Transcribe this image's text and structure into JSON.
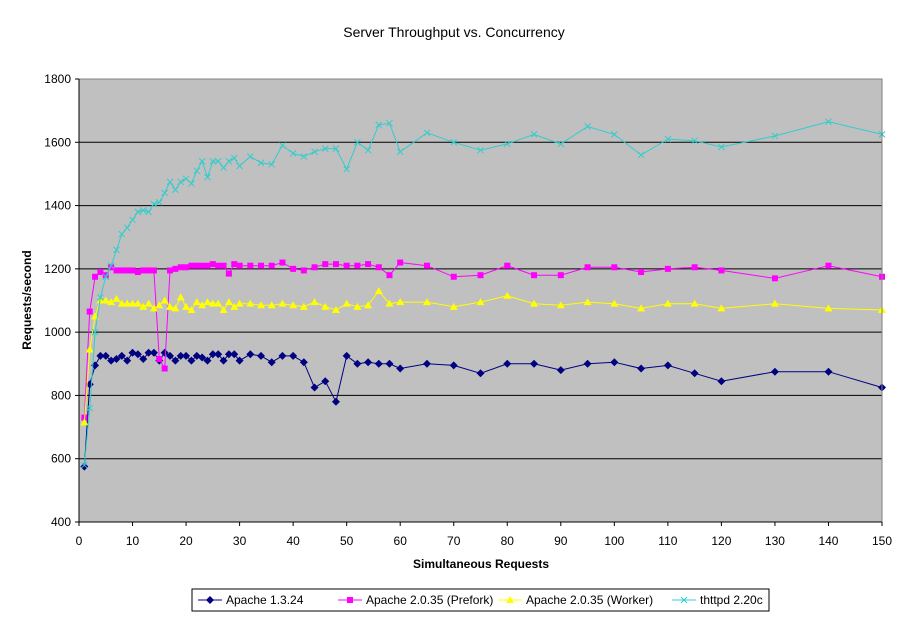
{
  "chart_data": {
    "type": "line",
    "title": "Server Throughput vs. Concurrency",
    "xlabel": "Simultaneous Requests",
    "ylabel": "Requests/second",
    "xlim": [
      0,
      150
    ],
    "ylim": [
      400,
      1800
    ],
    "x_ticks": [
      0,
      10,
      20,
      30,
      40,
      50,
      60,
      70,
      80,
      90,
      100,
      110,
      120,
      130,
      140,
      150
    ],
    "y_ticks": [
      400,
      600,
      800,
      1000,
      1200,
      1400,
      1600,
      1800
    ],
    "grid": true,
    "legend_position": "bottom",
    "colors": {
      "plot_background": "#c0c0c0",
      "gridline": "#000000"
    },
    "series": [
      {
        "name": "Apache 1.3.24",
        "color": "#000080",
        "marker": "diamond",
        "points": [
          [
            1,
            575
          ],
          [
            2,
            835
          ],
          [
            3,
            895
          ],
          [
            4,
            925
          ],
          [
            5,
            925
          ],
          [
            6,
            910
          ],
          [
            7,
            915
          ],
          [
            8,
            925
          ],
          [
            9,
            910
          ],
          [
            10,
            935
          ],
          [
            11,
            930
          ],
          [
            12,
            915
          ],
          [
            13,
            935
          ],
          [
            14,
            935
          ],
          [
            15,
            910
          ],
          [
            16,
            935
          ],
          [
            17,
            925
          ],
          [
            18,
            910
          ],
          [
            19,
            925
          ],
          [
            20,
            925
          ],
          [
            21,
            910
          ],
          [
            22,
            925
          ],
          [
            23,
            920
          ],
          [
            24,
            910
          ],
          [
            25,
            930
          ],
          [
            26,
            930
          ],
          [
            27,
            910
          ],
          [
            28,
            930
          ],
          [
            29,
            930
          ],
          [
            30,
            910
          ],
          [
            32,
            930
          ],
          [
            34,
            925
          ],
          [
            36,
            905
          ],
          [
            38,
            925
          ],
          [
            40,
            925
          ],
          [
            42,
            905
          ],
          [
            44,
            825
          ],
          [
            46,
            845
          ],
          [
            48,
            780
          ],
          [
            50,
            925
          ],
          [
            52,
            900
          ],
          [
            54,
            905
          ],
          [
            56,
            900
          ],
          [
            58,
            900
          ],
          [
            60,
            885
          ],
          [
            65,
            900
          ],
          [
            70,
            895
          ],
          [
            75,
            870
          ],
          [
            80,
            900
          ],
          [
            85,
            900
          ],
          [
            90,
            880
          ],
          [
            95,
            900
          ],
          [
            100,
            905
          ],
          [
            105,
            885
          ],
          [
            110,
            895
          ],
          [
            115,
            870
          ],
          [
            120,
            845
          ],
          [
            130,
            875
          ],
          [
            140,
            875
          ],
          [
            150,
            825
          ]
        ]
      },
      {
        "name": "Apache 2.0.35 (Prefork)",
        "color": "#ff00ff",
        "marker": "square",
        "points": [
          [
            1,
            730
          ],
          [
            2,
            1065
          ],
          [
            3,
            1175
          ],
          [
            4,
            1190
          ],
          [
            5,
            1180
          ],
          [
            6,
            1205
          ],
          [
            7,
            1195
          ],
          [
            8,
            1195
          ],
          [
            9,
            1195
          ],
          [
            10,
            1195
          ],
          [
            11,
            1190
          ],
          [
            12,
            1195
          ],
          [
            13,
            1195
          ],
          [
            14,
            1195
          ],
          [
            15,
            915
          ],
          [
            16,
            885
          ],
          [
            17,
            1195
          ],
          [
            18,
            1200
          ],
          [
            19,
            1205
          ],
          [
            20,
            1205
          ],
          [
            21,
            1210
          ],
          [
            22,
            1210
          ],
          [
            23,
            1210
          ],
          [
            24,
            1210
          ],
          [
            25,
            1215
          ],
          [
            26,
            1210
          ],
          [
            27,
            1210
          ],
          [
            28,
            1185
          ],
          [
            29,
            1215
          ],
          [
            30,
            1210
          ],
          [
            32,
            1210
          ],
          [
            34,
            1210
          ],
          [
            36,
            1210
          ],
          [
            38,
            1220
          ],
          [
            40,
            1200
          ],
          [
            42,
            1195
          ],
          [
            44,
            1205
          ],
          [
            46,
            1215
          ],
          [
            48,
            1215
          ],
          [
            50,
            1210
          ],
          [
            52,
            1210
          ],
          [
            54,
            1215
          ],
          [
            56,
            1205
          ],
          [
            58,
            1180
          ],
          [
            60,
            1220
          ],
          [
            65,
            1210
          ],
          [
            70,
            1175
          ],
          [
            75,
            1180
          ],
          [
            80,
            1210
          ],
          [
            85,
            1180
          ],
          [
            90,
            1180
          ],
          [
            95,
            1205
          ],
          [
            100,
            1205
          ],
          [
            105,
            1190
          ],
          [
            110,
            1200
          ],
          [
            115,
            1205
          ],
          [
            120,
            1195
          ],
          [
            130,
            1170
          ],
          [
            140,
            1210
          ],
          [
            150,
            1175
          ]
        ]
      },
      {
        "name": "Apache 2.0.35 (Worker)",
        "color": "#ffff00",
        "marker": "triangle",
        "points": [
          [
            1,
            715
          ],
          [
            2,
            945
          ],
          [
            3,
            1050
          ],
          [
            4,
            1100
          ],
          [
            5,
            1100
          ],
          [
            6,
            1095
          ],
          [
            7,
            1105
          ],
          [
            8,
            1090
          ],
          [
            9,
            1090
          ],
          [
            10,
            1090
          ],
          [
            11,
            1090
          ],
          [
            12,
            1080
          ],
          [
            13,
            1090
          ],
          [
            14,
            1075
          ],
          [
            15,
            1085
          ],
          [
            16,
            1100
          ],
          [
            17,
            1080
          ],
          [
            18,
            1075
          ],
          [
            19,
            1110
          ],
          [
            20,
            1080
          ],
          [
            21,
            1070
          ],
          [
            22,
            1095
          ],
          [
            23,
            1085
          ],
          [
            24,
            1095
          ],
          [
            25,
            1090
          ],
          [
            26,
            1090
          ],
          [
            27,
            1070
          ],
          [
            28,
            1095
          ],
          [
            29,
            1080
          ],
          [
            30,
            1090
          ],
          [
            32,
            1090
          ],
          [
            34,
            1085
          ],
          [
            36,
            1085
          ],
          [
            38,
            1090
          ],
          [
            40,
            1085
          ],
          [
            42,
            1080
          ],
          [
            44,
            1095
          ],
          [
            46,
            1080
          ],
          [
            48,
            1070
          ],
          [
            50,
            1090
          ],
          [
            52,
            1080
          ],
          [
            54,
            1085
          ],
          [
            56,
            1130
          ],
          [
            58,
            1090
          ],
          [
            60,
            1095
          ],
          [
            65,
            1095
          ],
          [
            70,
            1080
          ],
          [
            75,
            1095
          ],
          [
            80,
            1115
          ],
          [
            85,
            1090
          ],
          [
            90,
            1085
          ],
          [
            95,
            1095
          ],
          [
            100,
            1090
          ],
          [
            105,
            1075
          ],
          [
            110,
            1090
          ],
          [
            115,
            1090
          ],
          [
            120,
            1075
          ],
          [
            130,
            1090
          ],
          [
            140,
            1075
          ],
          [
            150,
            1070
          ]
        ]
      },
      {
        "name": "thttpd 2.20c",
        "color": "#33cccc",
        "marker": "x",
        "points": [
          [
            1,
            580
          ],
          [
            2,
            760
          ],
          [
            3,
            1000
          ],
          [
            4,
            1110
          ],
          [
            5,
            1175
          ],
          [
            6,
            1210
          ],
          [
            7,
            1260
          ],
          [
            8,
            1310
          ],
          [
            9,
            1330
          ],
          [
            10,
            1355
          ],
          [
            11,
            1380
          ],
          [
            12,
            1385
          ],
          [
            13,
            1380
          ],
          [
            14,
            1405
          ],
          [
            15,
            1410
          ],
          [
            16,
            1440
          ],
          [
            17,
            1475
          ],
          [
            18,
            1450
          ],
          [
            19,
            1475
          ],
          [
            20,
            1485
          ],
          [
            21,
            1470
          ],
          [
            22,
            1510
          ],
          [
            23,
            1540
          ],
          [
            24,
            1490
          ],
          [
            25,
            1540
          ],
          [
            26,
            1540
          ],
          [
            27,
            1520
          ],
          [
            28,
            1540
          ],
          [
            29,
            1550
          ],
          [
            30,
            1525
          ],
          [
            32,
            1555
          ],
          [
            34,
            1535
          ],
          [
            36,
            1530
          ],
          [
            38,
            1590
          ],
          [
            40,
            1565
          ],
          [
            42,
            1555
          ],
          [
            44,
            1570
          ],
          [
            46,
            1580
          ],
          [
            48,
            1580
          ],
          [
            50,
            1515
          ],
          [
            52,
            1600
          ],
          [
            54,
            1575
          ],
          [
            56,
            1655
          ],
          [
            58,
            1660
          ],
          [
            60,
            1570
          ],
          [
            65,
            1630
          ],
          [
            70,
            1600
          ],
          [
            75,
            1575
          ],
          [
            80,
            1595
          ],
          [
            85,
            1625
          ],
          [
            90,
            1595
          ],
          [
            95,
            1650
          ],
          [
            100,
            1625
          ],
          [
            105,
            1560
          ],
          [
            110,
            1610
          ],
          [
            115,
            1605
          ],
          [
            120,
            1585
          ],
          [
            130,
            1620
          ],
          [
            140,
            1665
          ],
          [
            150,
            1625
          ]
        ]
      }
    ]
  }
}
